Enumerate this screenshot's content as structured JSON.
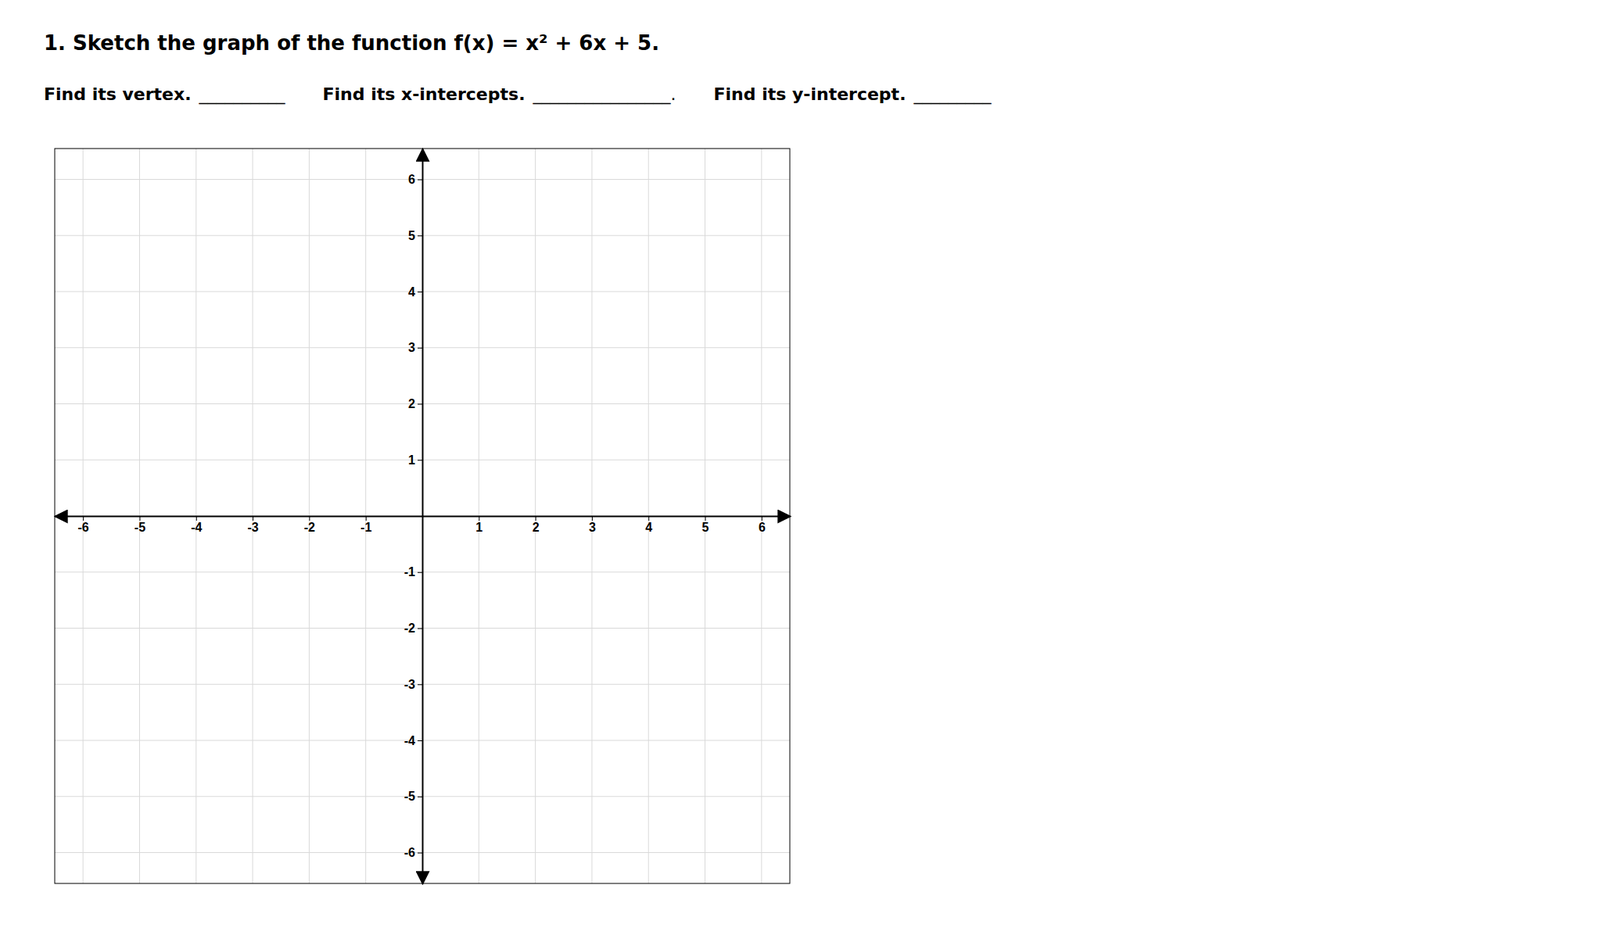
{
  "chart_data": {
    "type": "plane",
    "title": "1.  Sketch the graph of the function f(x) = x² + 6x + 5.",
    "annotations": [
      "Find its vertex.",
      "__________",
      "Find its x-intercepts.",
      "________________.",
      "Find its y-intercept.",
      "_________"
    ],
    "xlim": [
      -6.5,
      6.5
    ],
    "ylim": [
      -6.55,
      6.55
    ],
    "xticks": [
      -6,
      -5,
      -4,
      -3,
      -2,
      -1,
      1,
      2,
      3,
      4,
      5,
      6
    ],
    "yticks": [
      -6,
      -5,
      -4,
      -3,
      -2,
      -1,
      1,
      2,
      3,
      4,
      5,
      6
    ],
    "grid": true
  }
}
